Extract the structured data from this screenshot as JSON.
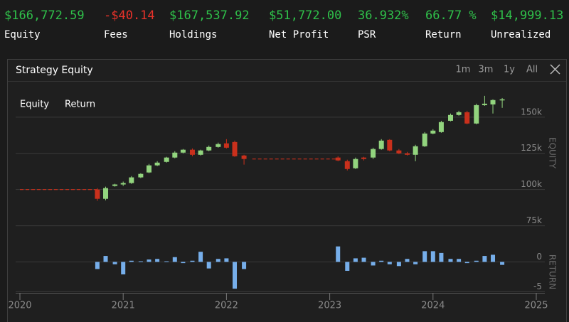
{
  "header": {
    "stats": [
      {
        "value": "$166,772.59",
        "label": "Equity"
      },
      {
        "value": "-$40.14",
        "label": "Fees"
      },
      {
        "value": "$167,537.92",
        "label": "Holdings"
      },
      {
        "value": "$51,772.00",
        "label": "Net Profit"
      },
      {
        "value": "36.932%",
        "label": "PSR"
      },
      {
        "value": "66.77 %",
        "label": "Return"
      },
      {
        "value": "$14,999.13",
        "label": "Unrealized"
      }
    ],
    "positive_color": "#2fc04a",
    "negative_color": "#e8322a"
  },
  "panel": {
    "title": "Strategy Equity",
    "ranges": [
      "1m",
      "3m",
      "1y",
      "All"
    ]
  },
  "chart_data": {
    "type": "candlestick",
    "legend": [
      "Equity",
      "Return"
    ],
    "xlim": [
      2020,
      2025
    ],
    "xticks": [
      2020,
      2021,
      2022,
      2023,
      2024,
      2025
    ],
    "ylabel": "EQUITY",
    "ylim": [
      64000,
      172000
    ],
    "yticks": [
      {
        "value": 75000,
        "label": "75k"
      },
      {
        "value": 100000,
        "label": "100k"
      },
      {
        "value": 125000,
        "label": "125k"
      },
      {
        "value": 150000,
        "label": "150k"
      }
    ],
    "y2label": "RETURN",
    "y2lim": [
      -5.2,
      2.8
    ],
    "y2ticks": [
      -5,
      0
    ],
    "grid": true,
    "up_color": "#92d47e",
    "down_color": "#c9301c",
    "return_color": "#76aeea",
    "x": [
      2020.75,
      2020.83,
      2020.92,
      2021.0,
      2021.08,
      2021.17,
      2021.25,
      2021.33,
      2021.42,
      2021.5,
      2021.58,
      2021.67,
      2021.75,
      2021.83,
      2021.92,
      2022.0,
      2022.08,
      2022.17,
      2023.08,
      2023.17,
      2023.25,
      2023.33,
      2023.42,
      2023.5,
      2023.58,
      2023.67,
      2023.75,
      2023.83,
      2023.92,
      2024.0,
      2024.08,
      2024.17,
      2024.25,
      2024.33,
      2024.42,
      2024.5,
      2024.58,
      2024.67
    ],
    "open": [
      100000,
      93600,
      102500,
      103500,
      104500,
      108400,
      111800,
      116700,
      119100,
      122100,
      125500,
      127500,
      124000,
      127000,
      129400,
      131900,
      132800,
      123500,
      122100,
      119600,
      114700,
      122100,
      122100,
      128000,
      134300,
      127000,
      125000,
      124000,
      129900,
      138700,
      139700,
      147500,
      151500,
      153400,
      145600,
      158300,
      158800,
      161800
    ],
    "high": [
      101000,
      102000,
      104000,
      105500,
      109300,
      111300,
      117700,
      119600,
      122600,
      126500,
      128000,
      128400,
      127500,
      130400,
      132400,
      134800,
      133800,
      124000,
      123000,
      120600,
      122100,
      122600,
      128900,
      134800,
      134800,
      128000,
      126000,
      130900,
      139700,
      141700,
      147500,
      152500,
      154400,
      154400,
      159300,
      164700,
      162300,
      163200
    ],
    "low": [
      92200,
      92600,
      102000,
      102500,
      103900,
      107900,
      111300,
      116200,
      118600,
      121600,
      125000,
      123000,
      123500,
      126500,
      128900,
      128400,
      122600,
      117200,
      119600,
      113200,
      114200,
      120100,
      121100,
      127500,
      126500,
      124500,
      123500,
      119600,
      129400,
      138200,
      139200,
      147100,
      151000,
      145100,
      145100,
      157800,
      152500,
      156400
    ],
    "close": [
      93600,
      101000,
      103500,
      104500,
      108400,
      110800,
      116700,
      118600,
      122100,
      125500,
      127500,
      124000,
      127000,
      129400,
      131400,
      128900,
      123000,
      121100,
      120100,
      114200,
      121100,
      121100,
      128000,
      133800,
      127000,
      125000,
      124000,
      129900,
      138700,
      140700,
      146600,
      151500,
      153400,
      145600,
      158300,
      159300,
      161800,
      162300
    ],
    "flat": [
      {
        "x": [
          2020,
          2020.75
        ],
        "value": 100000
      },
      {
        "x": [
          2022.25,
          2023.08
        ],
        "value": 121100
      }
    ],
    "returns": {
      "name": "Return",
      "axis": "y2",
      "values": [
        -1.2,
        1.0,
        -0.4,
        -2.1,
        0.2,
        0.1,
        0.4,
        0.5,
        0.1,
        0.8,
        -0.2,
        0.2,
        1.7,
        -1.1,
        0.5,
        0.6,
        -4.5,
        -1.2,
        2.6,
        -1.5,
        0.6,
        0.7,
        -0.6,
        0.2,
        -0.4,
        -0.7,
        0.5,
        -0.4,
        1.8,
        1.8,
        1.5,
        0.5,
        0.5,
        -0.2,
        0.2,
        1.0,
        1.2,
        -0.5
      ]
    }
  }
}
